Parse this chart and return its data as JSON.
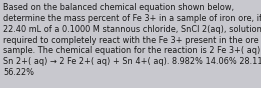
{
  "text": "Based on the balanced chemical equation shown below,\ndetermine the mass percent of Fe 3+ in a sample of iron ore, if\n22.40 mL of a 0.1000 M stannous chloride, SnCl 2(aq), solution is\nrequired to completely react with the Fe 3+ present in the ore\nsample. The chemical equation for the reaction is 2 Fe 3+( aq) +\nSn 2+( aq) → 2 Fe 2+( aq) + Sn 4+( aq). 8.982% 14.06% 28.11%\n56.22%",
  "background_color": "#c8c8ce",
  "text_color": "#1a1a1a",
  "font_size": 5.85,
  "fig_width": 2.61,
  "fig_height": 0.88,
  "dpi": 100
}
